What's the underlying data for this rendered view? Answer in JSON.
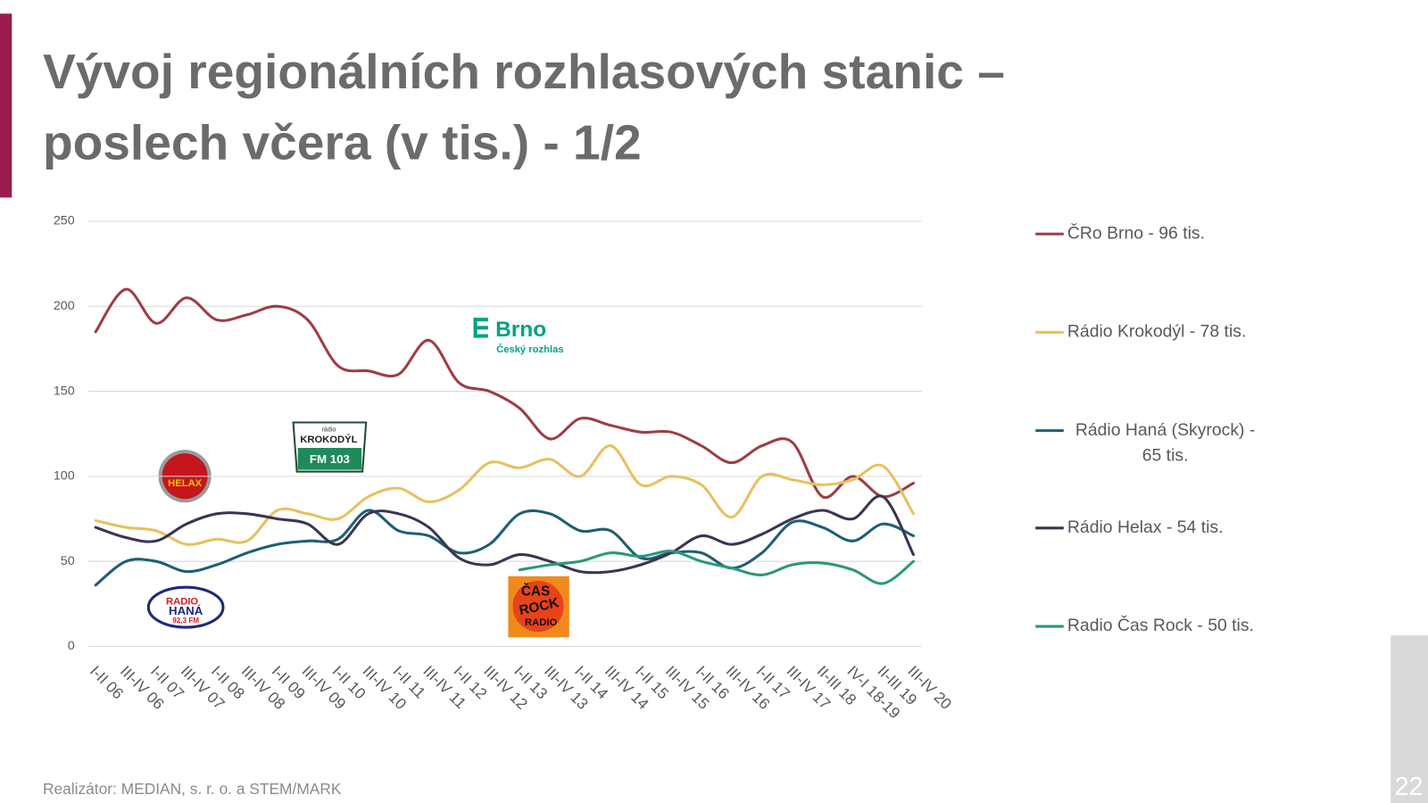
{
  "chart_data": {
    "type": "line",
    "title": "Vývoj regionálních rozhlasových stanic – poslech včera (v tis.) - 1/2",
    "categories": [
      "I-II 06",
      "III-IV 06",
      "I-II 07",
      "III-IV 07",
      "I-II 08",
      "III-IV 08",
      "I-II 09",
      "III-IV 09",
      "I-II 10",
      "III-IV 10",
      "I-II 11",
      "III-IV 11",
      "I-II 12",
      "III-IV 12",
      "I-II 13",
      "III-IV 13",
      "I-II 14",
      "III-IV 14",
      "I-II 15",
      "III-IV 15",
      "I-II 16",
      "III-IV 16",
      "I-II 17",
      "III-IV 17",
      "II-III 18",
      "IV-I 18-19",
      "II-III 19",
      "III-IV 20"
    ],
    "ylim": [
      0,
      250
    ],
    "yticks": [
      0,
      50,
      100,
      150,
      200,
      250
    ],
    "grid": true,
    "series": [
      {
        "name": "ČRo Brno - 96 tis.",
        "color": "#9e3d44",
        "values": [
          185,
          210,
          190,
          205,
          192,
          195,
          200,
          192,
          165,
          162,
          160,
          180,
          155,
          150,
          140,
          122,
          134,
          130,
          126,
          126,
          118,
          108,
          118,
          120,
          88,
          100,
          88,
          96
        ]
      },
      {
        "name": "Rádio Krokodýl - 78 tis.",
        "color": "#e8c060",
        "values": [
          74,
          70,
          68,
          60,
          63,
          62,
          80,
          78,
          75,
          88,
          93,
          85,
          92,
          108,
          105,
          110,
          100,
          118,
          95,
          100,
          95,
          76,
          100,
          98,
          95,
          98,
          106,
          78
        ]
      },
      {
        "name": "Rádio Haná (Skyrock) - 65 tis.",
        "color": "#1e5f73",
        "values": [
          36,
          50,
          50,
          44,
          48,
          55,
          60,
          62,
          63,
          80,
          68,
          65,
          55,
          60,
          78,
          78,
          68,
          68,
          52,
          55,
          55,
          46,
          55,
          73,
          70,
          62,
          72,
          65
        ]
      },
      {
        "name": "Rádio Helax - 54 tis.",
        "color": "#3b3454",
        "values": [
          70,
          64,
          62,
          72,
          78,
          78,
          75,
          72,
          60,
          78,
          78,
          70,
          52,
          48,
          54,
          50,
          44,
          44,
          48,
          55,
          65,
          60,
          66,
          75,
          80,
          75,
          88,
          54
        ]
      },
      {
        "name": "Radio Čas Rock - 50 tis.",
        "color": "#2a9878",
        "values": [
          null,
          null,
          null,
          null,
          null,
          null,
          null,
          null,
          null,
          null,
          null,
          null,
          null,
          null,
          45,
          48,
          50,
          55,
          53,
          56,
          50,
          46,
          42,
          48,
          49,
          45,
          37,
          50
        ]
      }
    ]
  },
  "logos": {
    "brno": {
      "name": "Brno",
      "sub": "Český rozhlas"
    },
    "krokodyl": {
      "top": "rádio",
      "name": "KROKODÝL",
      "sub": "FM 103"
    },
    "helax": {
      "name": "HELAX"
    },
    "hana": {
      "top": "RADIO",
      "name": "HANÁ",
      "sub": "92,3 FM"
    },
    "casrock": {
      "top": "ČAS",
      "name": "ROCK",
      "sub": "RADIO"
    }
  },
  "footer": "Realizátor: MEDIAN, s. r. o. a STEM/MARK",
  "page_number": "22"
}
